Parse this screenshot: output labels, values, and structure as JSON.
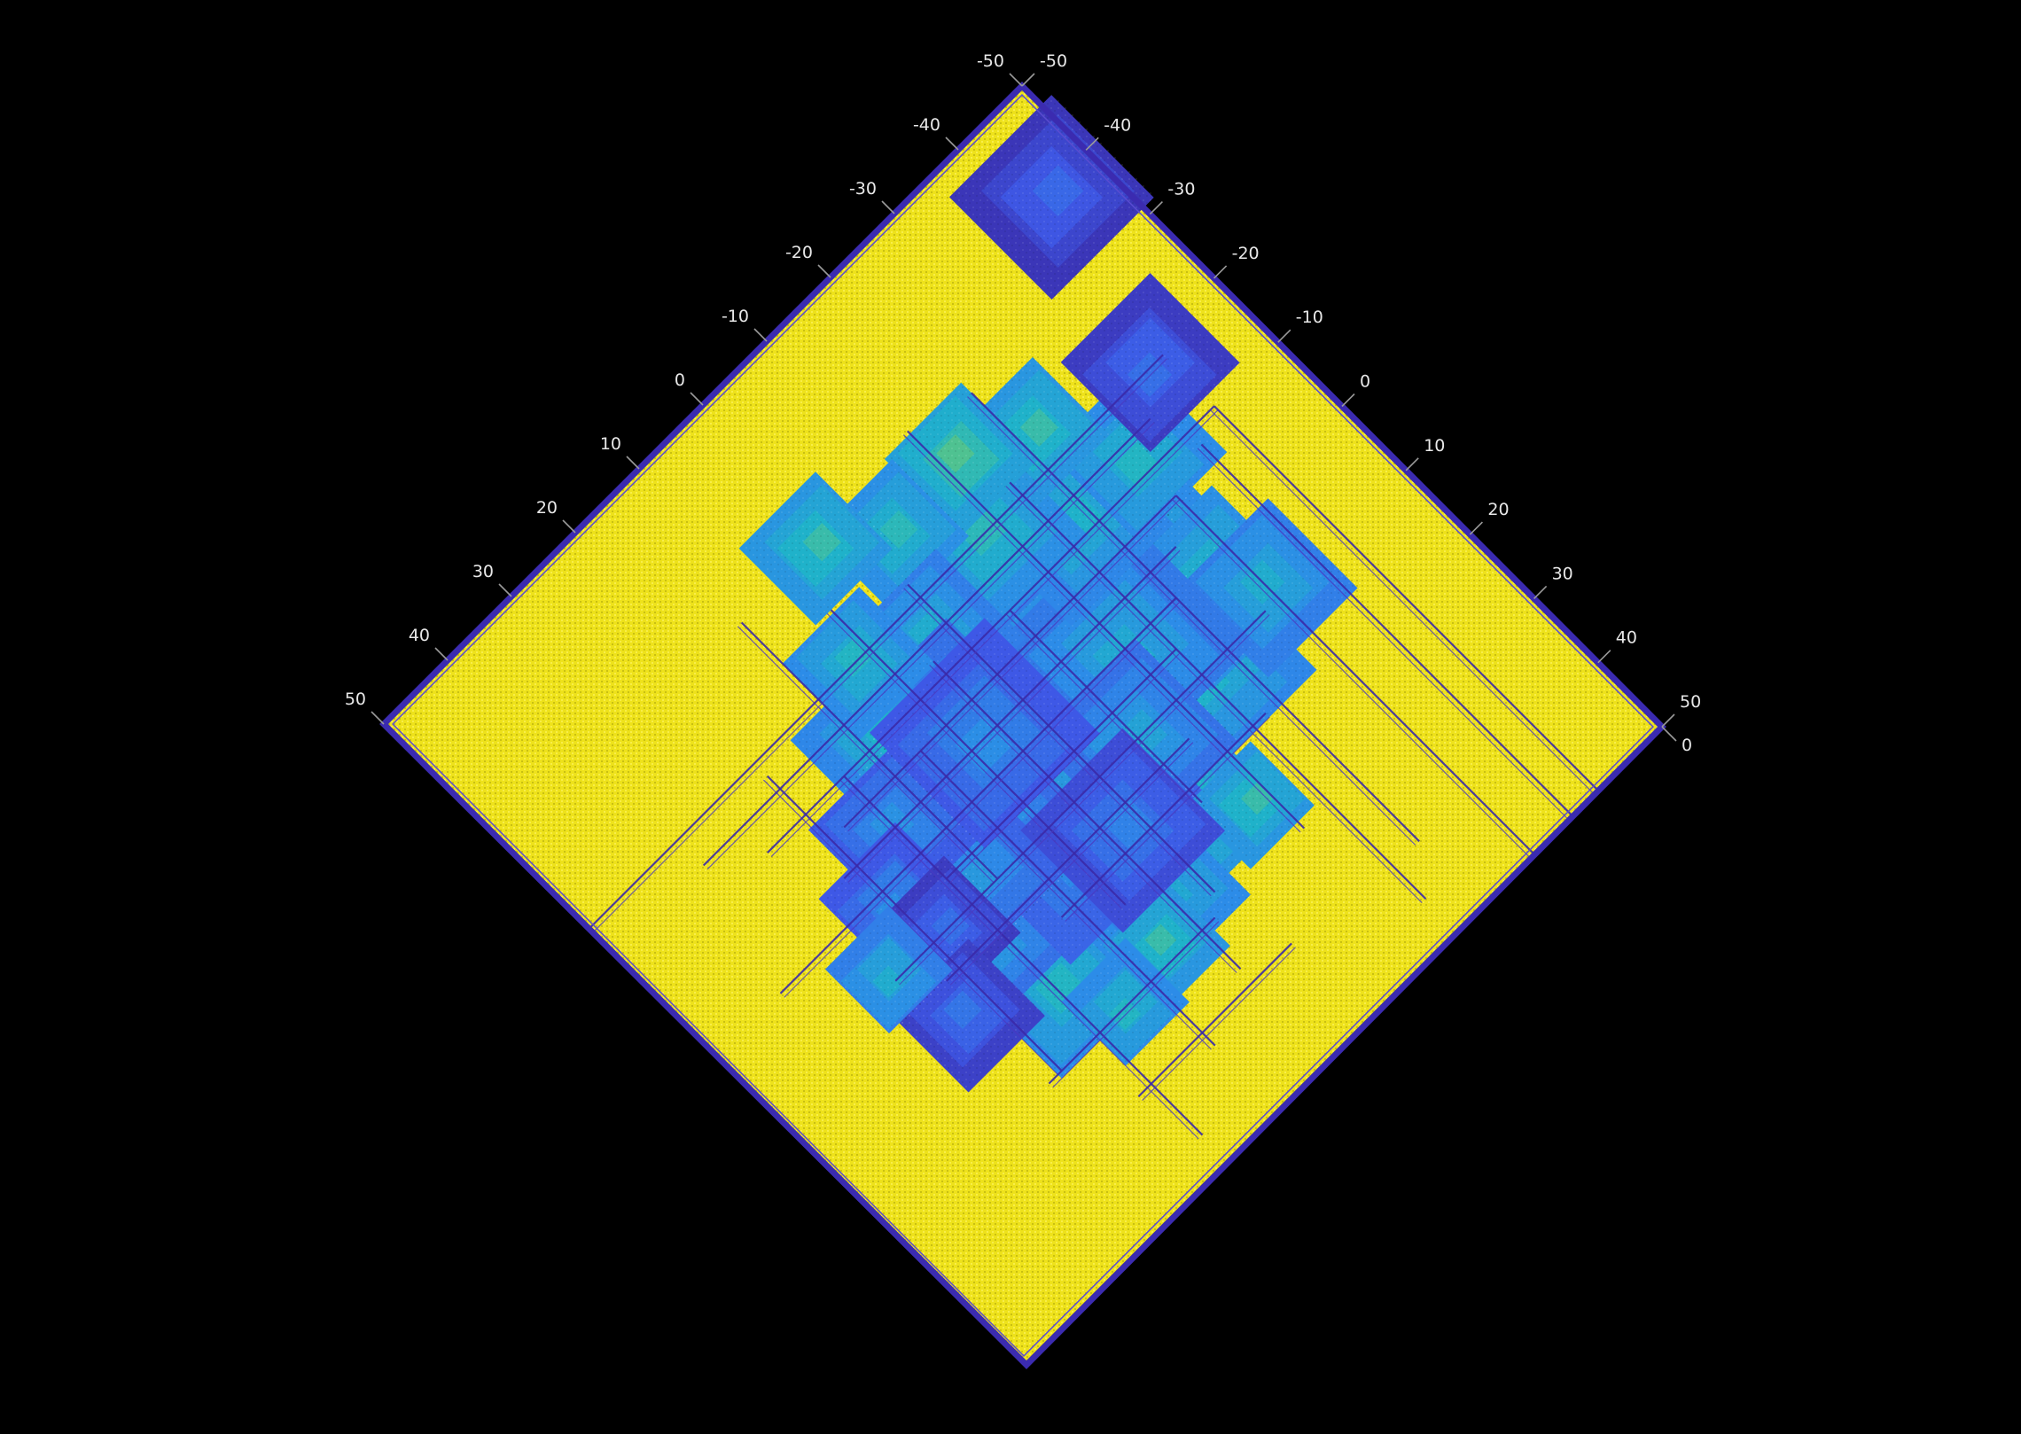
{
  "chart_data": {
    "type": "heatmap",
    "title": "",
    "xlabel": "",
    "ylabel": "",
    "view": "rotated 45 degrees (diamond)",
    "grid": false,
    "legend": "none",
    "axis_left": {
      "ticks": [
        "-50",
        "-40",
        "-30",
        "-20",
        "-10",
        "0",
        "10",
        "20",
        "30",
        "40",
        "50"
      ],
      "range": [
        -50,
        50
      ]
    },
    "axis_right": {
      "ticks": [
        "-50",
        "-40",
        "-30",
        "-20",
        "-10",
        "0",
        "10",
        "20",
        "30",
        "40",
        "50"
      ],
      "range": [
        -50,
        50
      ]
    },
    "corner_label": "0",
    "colormap": {
      "low": "#3a2aa8",
      "mid_low": "#3f6fe6",
      "mid": "#2b9be0",
      "mid_high": "#29b7b0",
      "high": "#f2e41f"
    },
    "background_value_color": "#f2e41f",
    "frame_color": "#3b2bb0",
    "blobs": [
      {
        "u": -44,
        "v": -39,
        "size": 8,
        "level": 0.05
      },
      {
        "u": -23,
        "v": 0,
        "size": 9,
        "level": 0.4
      },
      {
        "u": -18,
        "v": 10,
        "size": 9,
        "level": 0.38
      },
      {
        "u": -26,
        "v": 4,
        "size": 8,
        "level": 0.42
      },
      {
        "u": -30,
        "v": 8,
        "size": 7,
        "level": 0.35
      },
      {
        "u": -5,
        "v": 19,
        "size": 9,
        "level": 0.45
      },
      {
        "u": 4,
        "v": 22,
        "size": 9,
        "level": 0.4
      },
      {
        "u": 10,
        "v": 17,
        "size": 7,
        "level": 0.35
      },
      {
        "u": 17,
        "v": 23,
        "size": 8,
        "level": 0.4
      },
      {
        "u": 20,
        "v": 14,
        "size": 7,
        "level": 0.3
      },
      {
        "u": -15,
        "v": -7,
        "size": 7,
        "level": 0.45
      },
      {
        "u": -8,
        "v": -2,
        "size": 10,
        "level": 0.35
      },
      {
        "u": -2,
        "v": 4,
        "size": 12,
        "level": 0.3
      },
      {
        "u": 3,
        "v": 10,
        "size": 12,
        "level": 0.25
      },
      {
        "u": -14,
        "v": 2,
        "size": 10,
        "level": 0.33
      },
      {
        "u": -20,
        "v": -12,
        "size": 8,
        "level": 0.38
      },
      {
        "u": -12,
        "v": -18,
        "size": 8,
        "level": 0.42
      },
      {
        "u": -30,
        "v": -12,
        "size": 7,
        "level": 0.4
      },
      {
        "u": -24,
        "v": -22,
        "size": 6,
        "level": 0.45
      },
      {
        "u": -16,
        "v": -26,
        "size": 6,
        "level": 0.5
      },
      {
        "u": -38,
        "v": -18,
        "size": 7,
        "level": 0.08
      },
      {
        "u": -5,
        "v": -25,
        "size": 6,
        "level": 0.42
      },
      {
        "u": 0,
        "v": -14,
        "size": 7,
        "level": 0.35
      },
      {
        "u": 6,
        "v": -6,
        "size": 8,
        "level": 0.3
      },
      {
        "u": 2,
        "v": -30,
        "size": 6,
        "level": 0.45
      },
      {
        "u": 10,
        "v": 3,
        "size": 8,
        "level": 0.28
      },
      {
        "u": 15,
        "v": 8,
        "size": 7,
        "level": 0.25
      },
      {
        "u": 12,
        "v": -10,
        "size": 7,
        "level": 0.38
      },
      {
        "u": 18,
        "v": -2,
        "size": 7,
        "level": 0.22
      },
      {
        "u": 24,
        "v": 4,
        "size": 6,
        "level": 0.2
      },
      {
        "u": 22,
        "v": 10,
        "size": 6,
        "level": 0.08
      },
      {
        "u": 27,
        "v": 18,
        "size": 6,
        "level": 0.1
      },
      {
        "u": 30,
        "v": 9,
        "size": 5,
        "level": 0.35
      },
      {
        "u": -8,
        "v": 10,
        "size": 8,
        "level": 0.3
      },
      {
        "u": 6,
        "v": 28,
        "size": 5,
        "level": 0.45
      },
      {
        "u": 14,
        "v": 30,
        "size": 5,
        "level": 0.4
      },
      {
        "u": -12,
        "v": 24,
        "size": 5,
        "level": 0.45
      },
      {
        "u": 8,
        "v": -18,
        "size": 6,
        "level": 0.4
      },
      {
        "u": 4,
        "v": -2,
        "size": 9,
        "level": 0.2
      },
      {
        "u": 0,
        "v": 16,
        "size": 8,
        "level": 0.15
      }
    ],
    "lines": [
      {
        "dir": "v",
        "pos": -22,
        "from": -30,
        "to": 40
      },
      {
        "dir": "v",
        "pos": -18,
        "from": -20,
        "to": 45
      },
      {
        "dir": "v",
        "pos": -14,
        "from": -32,
        "to": 30
      },
      {
        "dir": "v",
        "pos": -8,
        "from": -10,
        "to": 20
      },
      {
        "dir": "v",
        "pos": -2,
        "from": -20,
        "to": 28
      },
      {
        "dir": "v",
        "pos": 2,
        "from": -12,
        "to": 36
      },
      {
        "dir": "v",
        "pos": 6,
        "from": -24,
        "to": 22
      },
      {
        "dir": "v",
        "pos": 10,
        "from": -6,
        "to": 40
      },
      {
        "dir": "v",
        "pos": 14,
        "from": -30,
        "to": 10
      },
      {
        "dir": "v",
        "pos": 18,
        "from": -10,
        "to": 46
      },
      {
        "dir": "v",
        "pos": 24,
        "from": -16,
        "to": 30
      },
      {
        "dir": "h",
        "pos": -10,
        "from": -40,
        "to": 30
      },
      {
        "dir": "h",
        "pos": -6,
        "from": -30,
        "to": 22
      },
      {
        "dir": "h",
        "pos": -2,
        "from": -26,
        "to": 26
      },
      {
        "dir": "h",
        "pos": 2,
        "from": -22,
        "to": 40
      },
      {
        "dir": "h",
        "pos": 6,
        "from": -18,
        "to": 18
      },
      {
        "dir": "h",
        "pos": 10,
        "from": -28,
        "to": 30
      },
      {
        "dir": "h",
        "pos": 14,
        "from": -12,
        "to": 26
      },
      {
        "dir": "h",
        "pos": 18,
        "from": -20,
        "to": 12
      },
      {
        "dir": "h",
        "pos": -18,
        "from": -40,
        "to": 50
      },
      {
        "dir": "h",
        "pos": -14,
        "from": -34,
        "to": 36
      },
      {
        "dir": "v",
        "pos": -40,
        "from": -10,
        "to": 50
      },
      {
        "dir": "v",
        "pos": -36,
        "from": -8,
        "to": 50
      },
      {
        "dir": "v",
        "pos": -30,
        "from": -6,
        "to": 50
      },
      {
        "dir": "h",
        "pos": 30,
        "from": 0,
        "to": 26
      },
      {
        "dir": "h",
        "pos": 38,
        "from": -4,
        "to": 20
      }
    ]
  }
}
